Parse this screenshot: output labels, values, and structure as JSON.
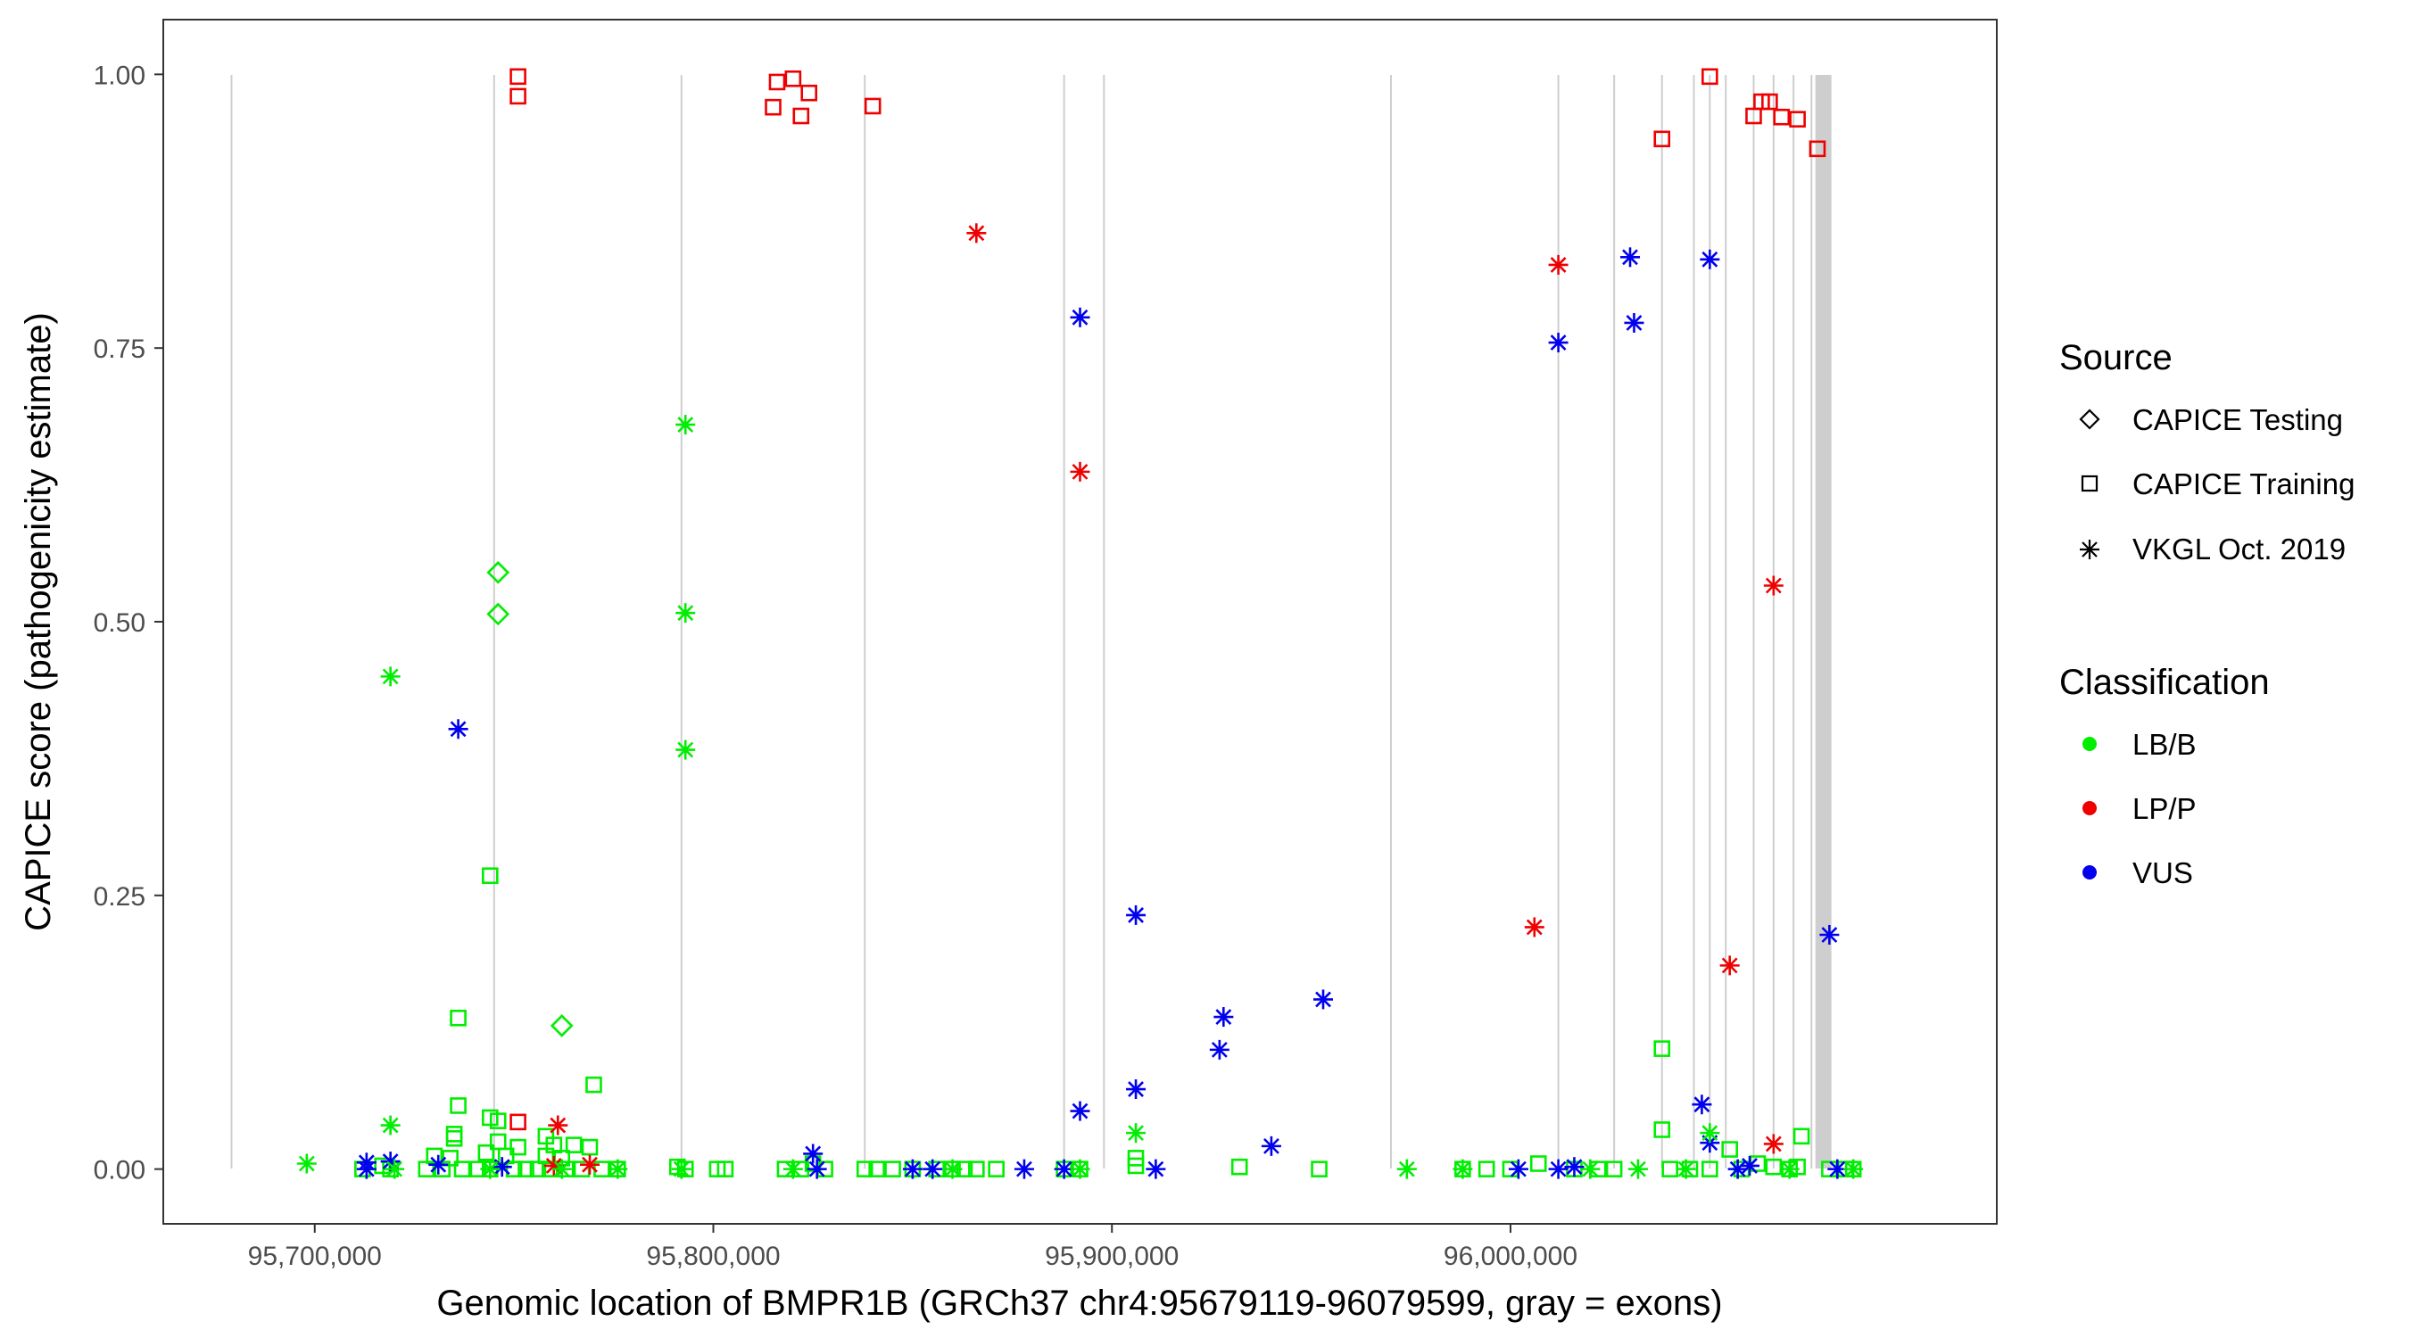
{
  "chart_data": {
    "type": "scatter",
    "xlabel": "Genomic location of BMPR1B (GRCh37 chr4:95679119-96079599, gray = exons)",
    "ylabel": "CAPICE score (pathogenicity estimate)",
    "xlim": [
      95662000,
      96122000
    ],
    "ylim": [
      -0.05,
      1.05
    ],
    "x_ticks": [
      95700000,
      95800000,
      95900000,
      96000000
    ],
    "x_tick_labels": [
      "95,700,000",
      "95,800,000",
      "95,900,000",
      "96,000,000"
    ],
    "y_ticks": [
      0,
      0.25,
      0.5,
      0.75,
      1
    ],
    "y_tick_labels": [
      "0.00",
      "0.25",
      "0.50",
      "0.75",
      "1.00"
    ],
    "grid": false,
    "exons": [
      95679119,
      95745000,
      95792000,
      95838000,
      95888000,
      95898000,
      95970000,
      96012000,
      96026000,
      96038000,
      96046000,
      96050000,
      96054000,
      96061000,
      96066000,
      96071000,
      96075500,
      96078500
    ],
    "legend": {
      "placement": "right",
      "source_title": "Source",
      "source_items": [
        {
          "label": "CAPICE Testing",
          "shape": "diamond"
        },
        {
          "label": "CAPICE Training",
          "shape": "square"
        },
        {
          "label": "VKGL Oct. 2019",
          "shape": "asterisk"
        }
      ],
      "class_title": "Classification",
      "class_items": [
        {
          "label": "LB/B",
          "color": "#00ee00"
        },
        {
          "label": "LP/P",
          "color": "#ee0000"
        },
        {
          "label": "VUS",
          "color": "#0000ee"
        }
      ]
    },
    "colors": {
      "LB/B": "#00ee00",
      "LP/P": "#ee0000",
      "VUS": "#0000ee"
    },
    "series": [
      {
        "source": "CAPICE Testing",
        "classification": "LB/B",
        "shape": "diamond",
        "points": [
          [
            95746000,
            0.545
          ],
          [
            95746000,
            0.507
          ],
          [
            95762000,
            0.131
          ]
        ]
      },
      {
        "source": "CAPICE Training",
        "classification": "LP/P",
        "shape": "square",
        "points": [
          [
            95751000,
            0.998
          ],
          [
            95751000,
            0.98
          ],
          [
            95815000,
            0.97
          ],
          [
            95816000,
            0.993
          ],
          [
            95820000,
            0.996
          ],
          [
            95822000,
            0.962
          ],
          [
            95824000,
            0.983
          ],
          [
            95840000,
            0.971
          ],
          [
            96038000,
            0.941
          ],
          [
            96050000,
            0.998
          ],
          [
            96061000,
            0.962
          ],
          [
            96063000,
            0.975
          ],
          [
            96065000,
            0.975
          ],
          [
            96068000,
            0.961
          ],
          [
            96072000,
            0.959
          ],
          [
            96077000,
            0.932
          ],
          [
            95751000,
            0.043
          ]
        ]
      },
      {
        "source": "CAPICE Training",
        "classification": "LB/B",
        "shape": "square",
        "points": [
          [
            95744000,
            0.268
          ],
          [
            95736000,
            0.138
          ],
          [
            95736000,
            0.058
          ],
          [
            95744000,
            0.047
          ],
          [
            95746000,
            0.044
          ],
          [
            95735000,
            0.032
          ],
          [
            95735000,
            0.028
          ],
          [
            95746000,
            0.025
          ],
          [
            95758000,
            0.03
          ],
          [
            95751000,
            0.02
          ],
          [
            95760000,
            0.022
          ],
          [
            95765000,
            0.022
          ],
          [
            95769000,
            0.02
          ],
          [
            95743000,
            0.015
          ],
          [
            95730000,
            0.012
          ],
          [
            95734000,
            0.01
          ],
          [
            95748000,
            0.012
          ],
          [
            95758000,
            0.012
          ],
          [
            95762000,
            0.01
          ],
          [
            95770000,
            0.077
          ],
          [
            95712000,
            0.0
          ],
          [
            95717000,
            0.003
          ],
          [
            95719000,
            0.0
          ],
          [
            95728000,
            0.0
          ],
          [
            95732000,
            0.0
          ],
          [
            95737000,
            0.0
          ],
          [
            95741000,
            0.0
          ],
          [
            95744000,
            0.0
          ],
          [
            95750000,
            0.0
          ],
          [
            95753000,
            0.0
          ],
          [
            95756000,
            0.0
          ],
          [
            95759000,
            0.0
          ],
          [
            95763000,
            0.0
          ],
          [
            95767000,
            0.0
          ],
          [
            95772000,
            0.0
          ],
          [
            95776000,
            0.0
          ],
          [
            95791000,
            0.002
          ],
          [
            95793000,
            0.0
          ],
          [
            95801000,
            0.0
          ],
          [
            95803000,
            0.0
          ],
          [
            95818000,
            0.0
          ],
          [
            95822000,
            0.0
          ],
          [
            95825000,
            0.005
          ],
          [
            95828000,
            0.0
          ],
          [
            95838000,
            0.0
          ],
          [
            95841000,
            0.0
          ],
          [
            95845000,
            0.0
          ],
          [
            95850000,
            0.0
          ],
          [
            95856000,
            0.0
          ],
          [
            95860000,
            0.0
          ],
          [
            95863000,
            0.0
          ],
          [
            95866000,
            0.0
          ],
          [
            95871000,
            0.0
          ],
          [
            95888000,
            0.0
          ],
          [
            95892000,
            0.0
          ],
          [
            95906000,
            0.01
          ],
          [
            95906000,
            0.003
          ],
          [
            95932000,
            0.002
          ],
          [
            95952000,
            0.0
          ],
          [
            95988000,
            0.0
          ],
          [
            95994000,
            0.0
          ],
          [
            96000000,
            0.0
          ],
          [
            96007000,
            0.005
          ],
          [
            96016000,
            0.0
          ],
          [
            96022000,
            0.0
          ],
          [
            96026000,
            0.0
          ],
          [
            96038000,
            0.11
          ],
          [
            96038000,
            0.036
          ],
          [
            96040000,
            0.0
          ],
          [
            96045000,
            0.0
          ],
          [
            96050000,
            0.0
          ],
          [
            96055000,
            0.018
          ],
          [
            96058000,
            0.0
          ],
          [
            96062000,
            0.005
          ],
          [
            96066000,
            0.002
          ],
          [
            96070000,
            0.0
          ],
          [
            96073000,
            0.03
          ],
          [
            96072000,
            0.002
          ],
          [
            96080000,
            0.0
          ],
          [
            96084000,
            0.0
          ],
          [
            96086000,
            0.0
          ]
        ]
      },
      {
        "source": "VKGL Oct. 2019",
        "classification": "LP/P",
        "shape": "asterisk",
        "points": [
          [
            95866000,
            0.855
          ],
          [
            95892000,
            0.637
          ],
          [
            96012000,
            0.826
          ],
          [
            96006000,
            0.221
          ],
          [
            96066000,
            0.533
          ],
          [
            96055000,
            0.186
          ],
          [
            96066000,
            0.023
          ],
          [
            95761000,
            0.04
          ],
          [
            95760000,
            0.003
          ],
          [
            95769000,
            0.004
          ]
        ]
      },
      {
        "source": "VKGL Oct. 2019",
        "classification": "VUS",
        "shape": "asterisk",
        "points": [
          [
            95892000,
            0.778
          ],
          [
            96030000,
            0.833
          ],
          [
            96050000,
            0.831
          ],
          [
            96031000,
            0.773
          ],
          [
            96012000,
            0.755
          ],
          [
            95906000,
            0.232
          ],
          [
            96080000,
            0.214
          ],
          [
            95736000,
            0.402
          ],
          [
            95953000,
            0.155
          ],
          [
            95928000,
            0.139
          ],
          [
            95927000,
            0.109
          ],
          [
            95906000,
            0.073
          ],
          [
            95892000,
            0.053
          ],
          [
            95940000,
            0.021
          ],
          [
            96048000,
            0.059
          ],
          [
            96050000,
            0.024
          ],
          [
            95825000,
            0.014
          ],
          [
            95713000,
            0.006
          ],
          [
            95719000,
            0.007
          ],
          [
            95731000,
            0.004
          ],
          [
            95747000,
            0.002
          ],
          [
            95713000,
            0.0
          ],
          [
            95826000,
            0.0
          ],
          [
            95850000,
            0.0
          ],
          [
            95855000,
            0.0
          ],
          [
            95878000,
            0.0
          ],
          [
            95888000,
            0.0
          ],
          [
            95911000,
            0.0
          ],
          [
            96002000,
            0.0
          ],
          [
            96012000,
            0.0
          ],
          [
            96016000,
            0.002
          ],
          [
            96057000,
            0.0
          ],
          [
            96060000,
            0.003
          ],
          [
            96082000,
            0.0
          ]
        ]
      },
      {
        "source": "VKGL Oct. 2019",
        "classification": "LB/B",
        "shape": "asterisk",
        "points": [
          [
            95793000,
            0.68
          ],
          [
            95793000,
            0.508
          ],
          [
            95793000,
            0.383
          ],
          [
            95719000,
            0.45
          ],
          [
            95719000,
            0.04
          ],
          [
            95906000,
            0.033
          ],
          [
            96050000,
            0.033
          ],
          [
            95698000,
            0.005
          ],
          [
            95720000,
            0.0
          ],
          [
            95744000,
            0.0
          ],
          [
            95762000,
            0.0
          ],
          [
            95776000,
            0.0
          ],
          [
            95792000,
            0.0
          ],
          [
            95820000,
            0.0
          ],
          [
            95860000,
            0.0
          ],
          [
            95892000,
            0.0
          ],
          [
            95974000,
            0.0
          ],
          [
            95988000,
            0.0
          ],
          [
            96020000,
            0.0
          ],
          [
            96032000,
            0.0
          ],
          [
            96044000,
            0.0
          ],
          [
            96070000,
            0.0
          ],
          [
            96086000,
            0.0
          ]
        ]
      }
    ]
  }
}
